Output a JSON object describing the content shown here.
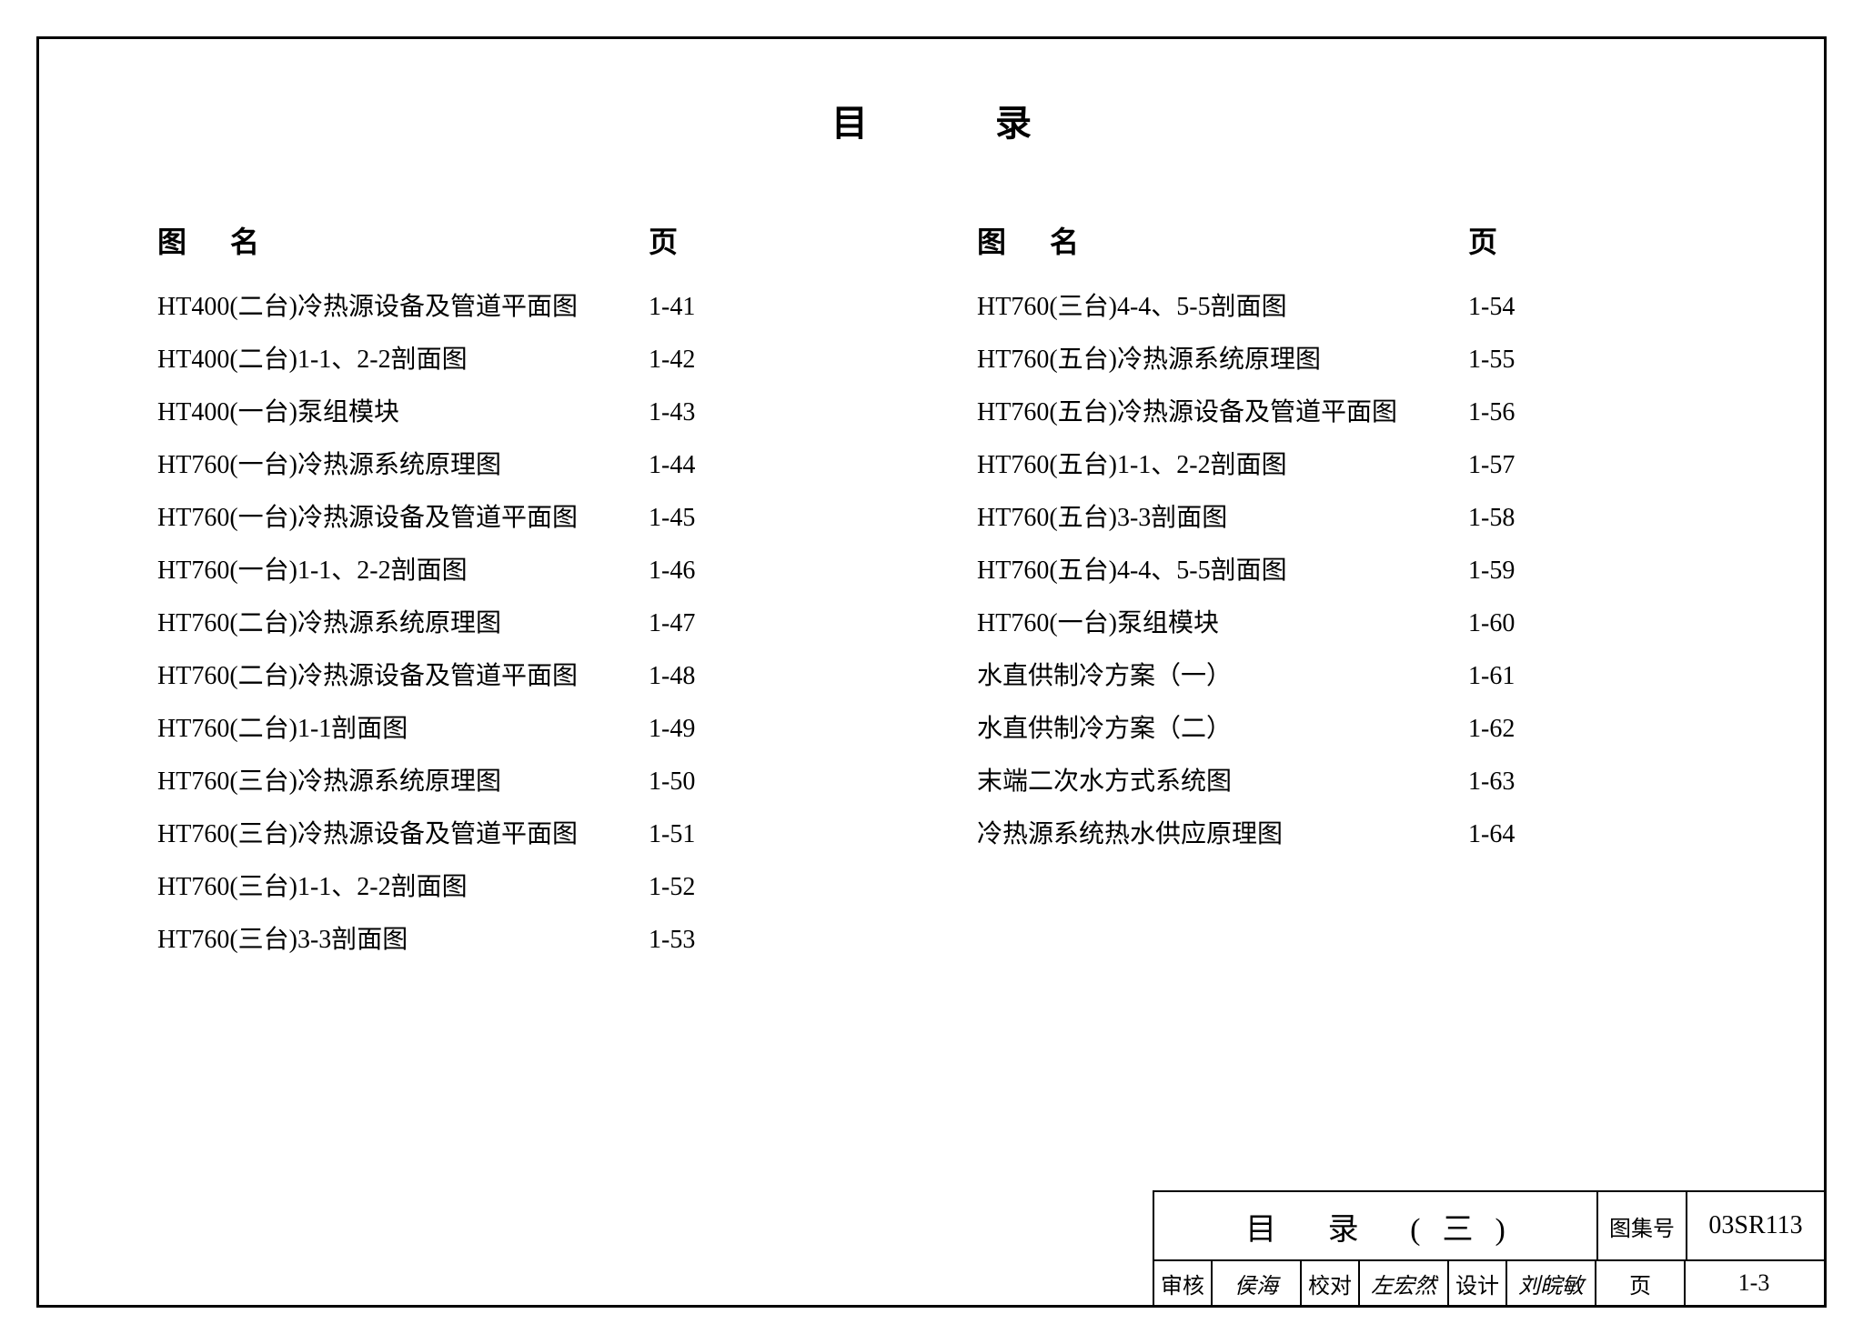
{
  "title": "目录",
  "columnHeaders": {
    "name": "图 名",
    "page": "页"
  },
  "leftColumn": [
    {
      "name": "HT400(二台)冷热源设备及管道平面图",
      "page": "1-41"
    },
    {
      "name": "HT400(二台)1-1、2-2剖面图",
      "page": "1-42"
    },
    {
      "name": "HT400(一台)泵组模块",
      "page": "1-43"
    },
    {
      "name": "HT760(一台)冷热源系统原理图",
      "page": "1-44"
    },
    {
      "name": "HT760(一台)冷热源设备及管道平面图",
      "page": "1-45"
    },
    {
      "name": "HT760(一台)1-1、2-2剖面图",
      "page": "1-46"
    },
    {
      "name": "HT760(二台)冷热源系统原理图",
      "page": "1-47"
    },
    {
      "name": "HT760(二台)冷热源设备及管道平面图",
      "page": "1-48"
    },
    {
      "name": "HT760(二台)1-1剖面图",
      "page": "1-49"
    },
    {
      "name": "HT760(三台)冷热源系统原理图",
      "page": "1-50"
    },
    {
      "name": "HT760(三台)冷热源设备及管道平面图",
      "page": "1-51"
    },
    {
      "name": "HT760(三台)1-1、2-2剖面图",
      "page": "1-52"
    },
    {
      "name": "HT760(三台)3-3剖面图",
      "page": "1-53"
    }
  ],
  "rightColumn": [
    {
      "name": "HT760(三台)4-4、5-5剖面图",
      "page": "1-54"
    },
    {
      "name": "HT760(五台)冷热源系统原理图",
      "page": "1-55"
    },
    {
      "name": "HT760(五台)冷热源设备及管道平面图",
      "page": "1-56"
    },
    {
      "name": "HT760(五台)1-1、2-2剖面图",
      "page": "1-57"
    },
    {
      "name": "HT760(五台)3-3剖面图",
      "page": "1-58"
    },
    {
      "name": "HT760(五台)4-4、5-5剖面图",
      "page": "1-59"
    },
    {
      "name": "HT760(一台)泵组模块",
      "page": "1-60"
    },
    {
      "name": "水直供制冷方案（一）",
      "page": "1-61"
    },
    {
      "name": "水直供制冷方案（二）",
      "page": "1-62"
    },
    {
      "name": "末端二次水方式系统图",
      "page": "1-63"
    },
    {
      "name": "冷热源系统热水供应原理图",
      "page": "1-64"
    }
  ],
  "titleBlock": {
    "mainTitle": "目 录 (三)",
    "atlasLabel": "图集号",
    "atlasNumber": "03SR113",
    "reviewLabel": "审核",
    "reviewSig": "侯海",
    "checkLabel": "校对",
    "checkSig": "左宏然",
    "designLabel": "设计",
    "designSig": "刘皖敏",
    "pageLabel": "页",
    "pageNumber": "1-3"
  },
  "styling": {
    "frameColor": "#000000",
    "backgroundColor": "#ffffff",
    "textColor": "#000000",
    "titleFontSize": 40,
    "headerFontSize": 32,
    "rowFontSize": 28,
    "titleBlockFontSize": 26
  }
}
